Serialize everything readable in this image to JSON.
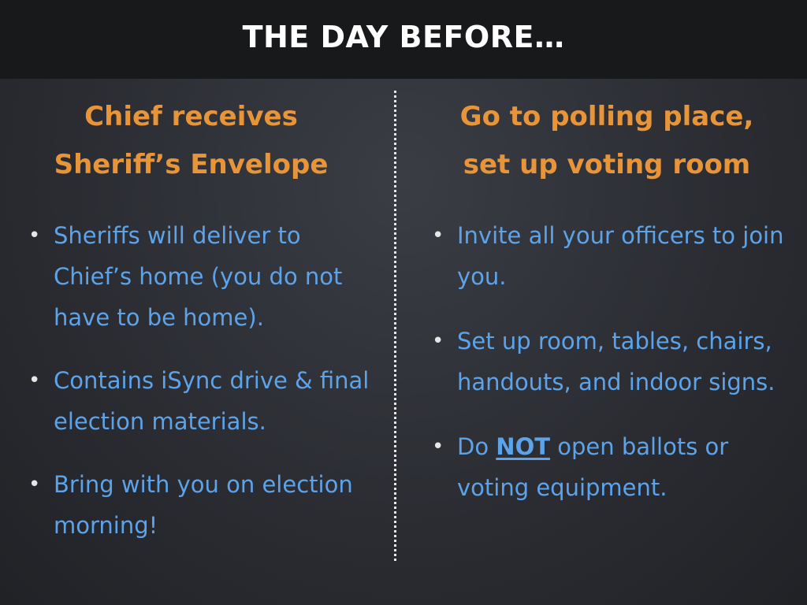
{
  "slide": {
    "title": "THE DAY BEFORE…"
  },
  "left_column": {
    "heading_line1": "Chief receives",
    "heading_line2": "Sheriff’s Envelope",
    "bullets": [
      {
        "text": "Sheriffs will deliver to Chief’s home (you do not have to be home)."
      },
      {
        "text": "Contains iSync drive & final election materials."
      },
      {
        "text": "Bring with you on election morning!"
      }
    ]
  },
  "right_column": {
    "heading_line1": "Go to polling place,",
    "heading_line2": "set up voting room",
    "bullets": [
      {
        "text": "Invite all your officers to join you."
      },
      {
        "text": "Set up room, tables, chairs, handouts, and indoor signs."
      },
      {
        "prefix": "Do ",
        "emphasis": "NOT",
        "suffix": " open ballots or voting equipment."
      }
    ]
  },
  "bullet_marker": "•",
  "colors": {
    "heading": "#e8953a",
    "bullet_text": "#5da3ea",
    "title_text": "#ffffff",
    "title_bar": "#18191b"
  }
}
